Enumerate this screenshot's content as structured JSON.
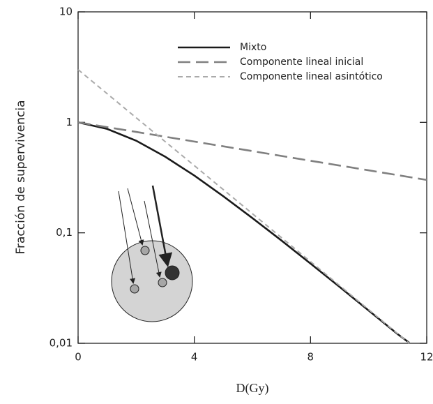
{
  "chart_data": {
    "type": "line",
    "xlabel": "D(Gy)",
    "ylabel": "Fracción de supervivencia",
    "xlim": [
      0,
      12
    ],
    "xticks": [
      0,
      4,
      8,
      12
    ],
    "ylim": [
      0.01,
      10
    ],
    "yscale": "log",
    "yticks": [
      {
        "value": 0.01,
        "label": "0,01"
      },
      {
        "value": 0.1,
        "label": "0,1"
      },
      1,
      10
    ],
    "legend": "upper right",
    "series": [
      {
        "name": "Mixto",
        "color": "#1a1a1a",
        "dash": "solid",
        "x": [
          0,
          1,
          2,
          3,
          4,
          5,
          6,
          7,
          8,
          9,
          10,
          11,
          11.4
        ],
        "values": [
          1,
          0.872,
          0.682,
          0.488,
          0.33,
          0.214,
          0.136,
          0.0852,
          0.0527,
          0.0324,
          0.0198,
          0.0121,
          0.0101
        ]
      },
      {
        "name": "Componente lineal inicial",
        "color": "#808080",
        "dash": "long",
        "x": [
          0,
          2,
          4,
          6,
          8,
          10,
          12
        ],
        "values": [
          1,
          0.819,
          0.67,
          0.549,
          0.449,
          0.368,
          0.301
        ]
      },
      {
        "name": "Componente lineal asintótico",
        "color": "#aaaaaa",
        "dash": "short",
        "x": [
          0,
          2,
          4,
          6,
          8,
          10,
          11.4
        ],
        "values": [
          3,
          1.1,
          0.406,
          0.149,
          0.0549,
          0.0202,
          0.01
        ]
      }
    ]
  }
}
